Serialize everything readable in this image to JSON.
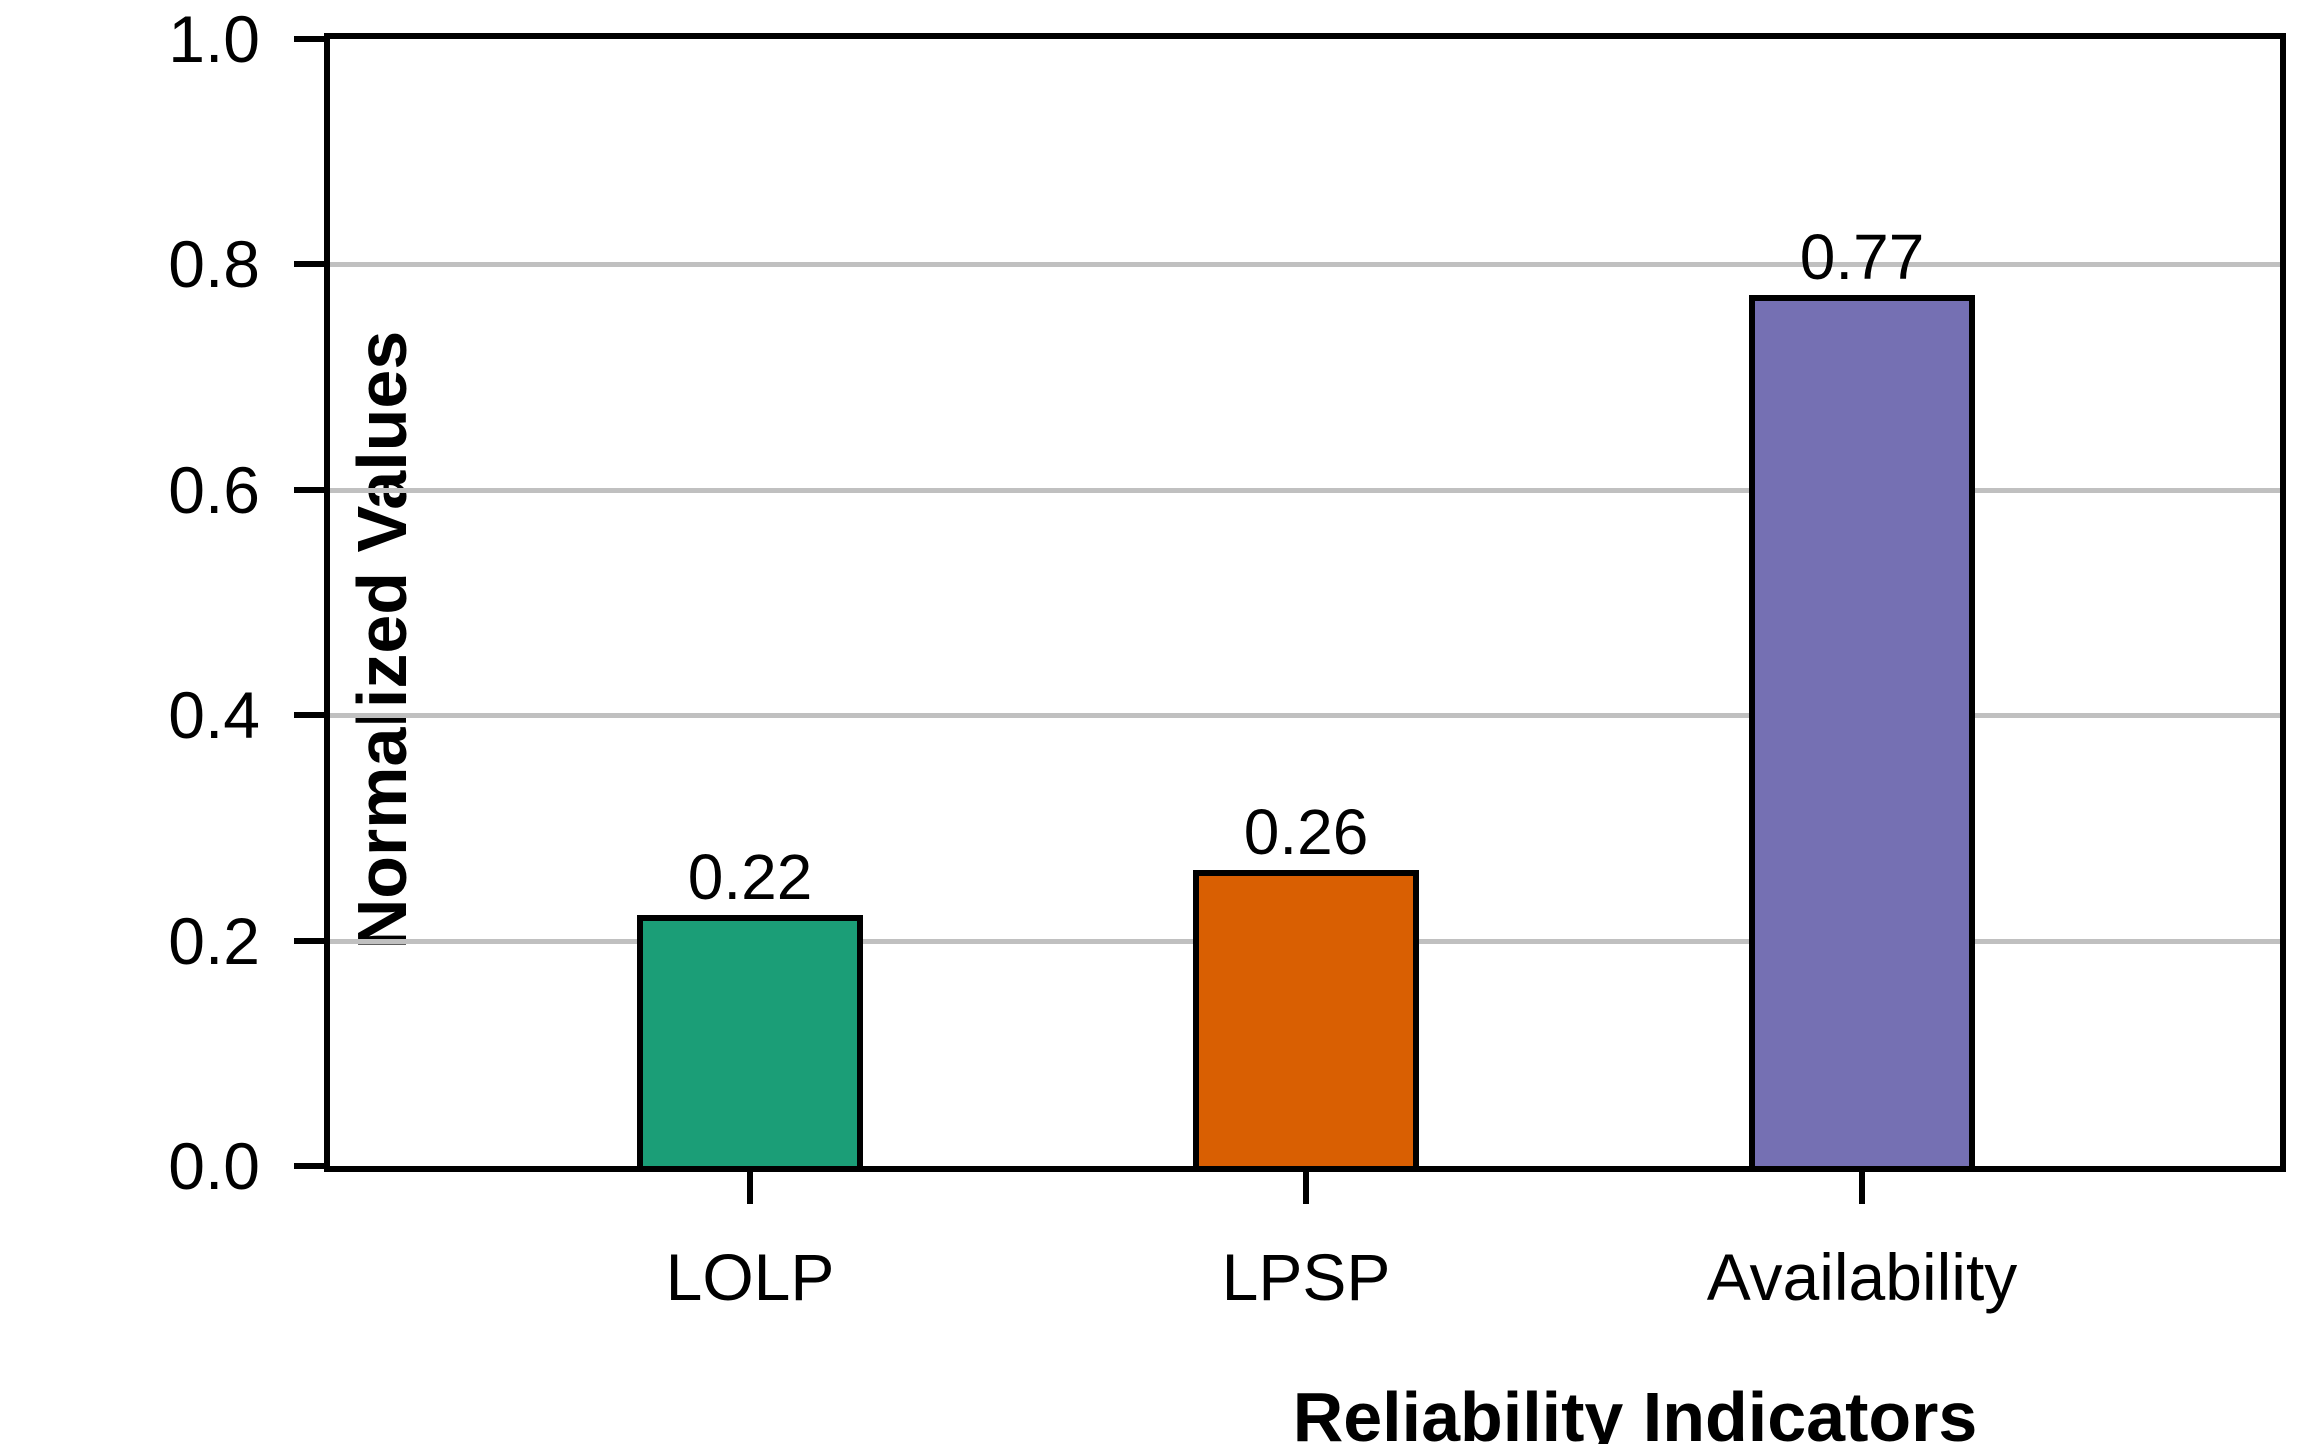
{
  "chart_data": {
    "type": "bar",
    "title": "",
    "xlabel": "Reliability Indicators",
    "ylabel": "Normalized Values",
    "categories": [
      "LOLP",
      "LPSP",
      "Availability"
    ],
    "values": [
      0.22,
      0.26,
      0.77
    ],
    "value_labels": [
      "0.22",
      "0.26",
      "0.77"
    ],
    "bar_colors": [
      "#1B9E77",
      "#D95F02",
      "#7570B3"
    ],
    "bar_border_color": "#000000",
    "ylim": [
      0.0,
      1.0
    ],
    "yticks": [
      0.0,
      0.2,
      0.4,
      0.6,
      0.8,
      1.0
    ],
    "ytick_labels": [
      "0.0",
      "0.2",
      "0.4",
      "0.6",
      "0.8",
      "1.0"
    ],
    "gridlines": [
      0.2,
      0.4,
      0.6,
      0.8
    ],
    "gridline_color": "#C0C0C0",
    "grid": "horizontal-only",
    "legend_position": "none",
    "frame": "full-box"
  }
}
